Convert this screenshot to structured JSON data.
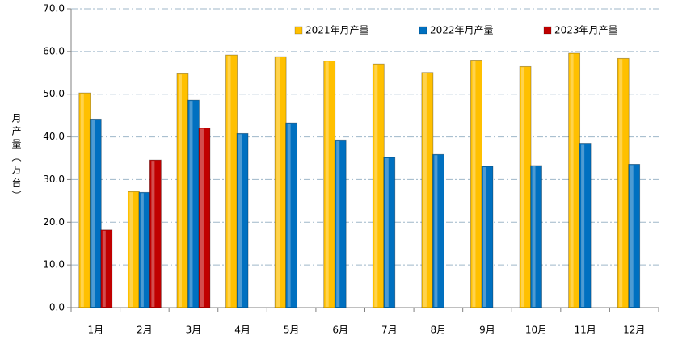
{
  "chart_data": {
    "type": "bar",
    "y_label": "月产量（万台）",
    "categories": [
      "1月",
      "2月",
      "3月",
      "4月",
      "5月",
      "6月",
      "7月",
      "8月",
      "9月",
      "10月",
      "11月",
      "12月"
    ],
    "series": [
      {
        "name": "2021年月产量",
        "color": "#ffc000",
        "values": [
          50.3,
          27.2,
          54.8,
          59.2,
          58.8,
          57.8,
          57.1,
          55.1,
          58.0,
          56.5,
          59.6,
          58.4
        ]
      },
      {
        "name": "2022年月产量",
        "color": "#0070c0",
        "values": [
          44.2,
          27.0,
          48.6,
          40.8,
          43.3,
          39.3,
          35.2,
          35.9,
          33.1,
          33.3,
          38.5,
          33.6
        ]
      },
      {
        "name": "2023年月产量",
        "color": "#c00000",
        "values": [
          18.2,
          34.6,
          42.1,
          null,
          null,
          null,
          null,
          null,
          null,
          null,
          null,
          null
        ]
      }
    ],
    "ylim": [
      0,
      70
    ],
    "yticks": [
      {
        "value": 0,
        "label": "0.0"
      },
      {
        "value": 10,
        "label": "10.0"
      },
      {
        "value": 20,
        "label": "20.0"
      },
      {
        "value": 30,
        "label": "30.0"
      },
      {
        "value": 40,
        "label": "40.0"
      },
      {
        "value": 50,
        "label": "50.0"
      },
      {
        "value": 60,
        "label": "60.0"
      },
      {
        "value": 70,
        "label": "70.0"
      }
    ],
    "grid": true,
    "legend": "top"
  }
}
